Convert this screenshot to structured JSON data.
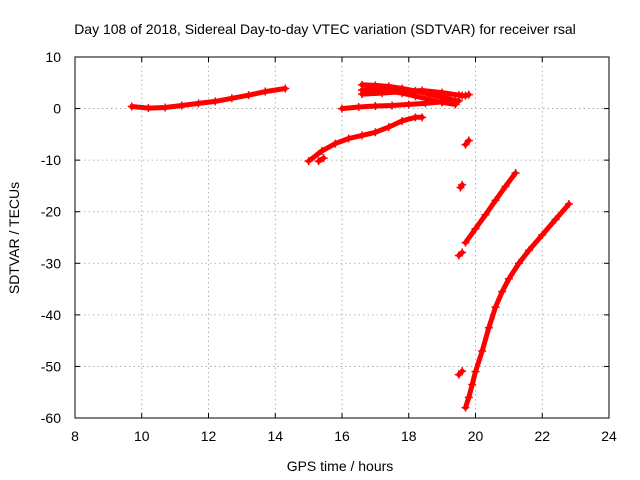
{
  "chart_data": {
    "type": "scatter",
    "title": "Day 108 of 2018, Sidereal Day-to-day VTEC variation (SDTVAR) for receiver rsal",
    "xlabel": "GPS time / hours",
    "ylabel": "SDTVAR / TECUs",
    "xlim": [
      8,
      24
    ],
    "ylim": [
      -60,
      10
    ],
    "xticks": [
      "8",
      "10",
      "12",
      "14",
      "16",
      "18",
      "20",
      "22",
      "24"
    ],
    "yticks": [
      "10",
      "0",
      "-10",
      "-20",
      "-30",
      "-40",
      "-50",
      "-60"
    ],
    "grid": true,
    "marker_color": "#ff0000",
    "series": [
      {
        "x": [
          9.7,
          10.2,
          10.7,
          11.2,
          11.7,
          12.2,
          12.7,
          13.2,
          13.7,
          14.3
        ],
        "y": [
          0.4,
          0.1,
          0.2,
          0.6,
          1.0,
          1.4,
          2.0,
          2.6,
          3.3,
          3.9
        ]
      },
      {
        "x": [
          15.0,
          15.4,
          15.8,
          16.2,
          16.6,
          17.0,
          17.4,
          17.8,
          18.2,
          18.4
        ],
        "y": [
          -10.2,
          -8.2,
          -6.8,
          -5.8,
          -5.2,
          -4.6,
          -3.6,
          -2.4,
          -1.7,
          -1.7
        ]
      },
      {
        "x": [
          15.3,
          15.45
        ],
        "y": [
          -10.2,
          -9.6
        ]
      },
      {
        "x": [
          16.0,
          16.5,
          17.0,
          17.5,
          18.0,
          18.5,
          19.0,
          19.5
        ],
        "y": [
          0.0,
          0.3,
          0.5,
          0.6,
          0.8,
          1.0,
          1.3,
          1.5
        ]
      },
      {
        "x": [
          16.6,
          17.0,
          17.4,
          17.8,
          18.2,
          18.6,
          19.0,
          19.4
        ],
        "y": [
          4.6,
          4.5,
          4.3,
          3.9,
          3.4,
          2.8,
          2.2,
          1.6
        ]
      },
      {
        "x": [
          16.6,
          17.0,
          17.4,
          17.8,
          18.2,
          18.6,
          19.0,
          19.4
        ],
        "y": [
          3.6,
          3.6,
          3.4,
          3.0,
          2.4,
          1.8,
          1.2,
          0.8
        ]
      },
      {
        "x": [
          16.6,
          17.2,
          17.8,
          18.4,
          19.0,
          19.6
        ],
        "y": [
          2.8,
          3.0,
          3.3,
          3.5,
          3.1,
          2.5
        ]
      },
      {
        "x": [
          19.5,
          19.7,
          19.8
        ],
        "y": [
          2.6,
          2.5,
          2.7
        ]
      },
      {
        "x": [
          19.7,
          19.8
        ],
        "y": [
          -7.0,
          -6.2
        ]
      },
      {
        "x": [
          19.55,
          19.6
        ],
        "y": [
          -15.3,
          -14.8
        ]
      },
      {
        "x": [
          19.7,
          20.0,
          20.3,
          20.6,
          20.9,
          21.2
        ],
        "y": [
          -26.0,
          -23.3,
          -20.6,
          -17.8,
          -15.1,
          -12.5
        ]
      },
      {
        "x": [
          19.5,
          19.6
        ],
        "y": [
          -28.5,
          -27.9
        ]
      },
      {
        "x": [
          19.5,
          19.6
        ],
        "y": [
          -51.6,
          -50.9
        ]
      },
      {
        "x": [
          19.7,
          19.8,
          19.9,
          20.0,
          20.2,
          20.4,
          20.6,
          20.8,
          21.0,
          21.3,
          21.6,
          22.0,
          22.4,
          22.8
        ],
        "y": [
          -58.0,
          -56.0,
          -53.5,
          -51.0,
          -47.0,
          -42.5,
          -38.5,
          -35.5,
          -33.0,
          -30.0,
          -27.5,
          -24.5,
          -21.5,
          -18.5
        ]
      }
    ]
  }
}
